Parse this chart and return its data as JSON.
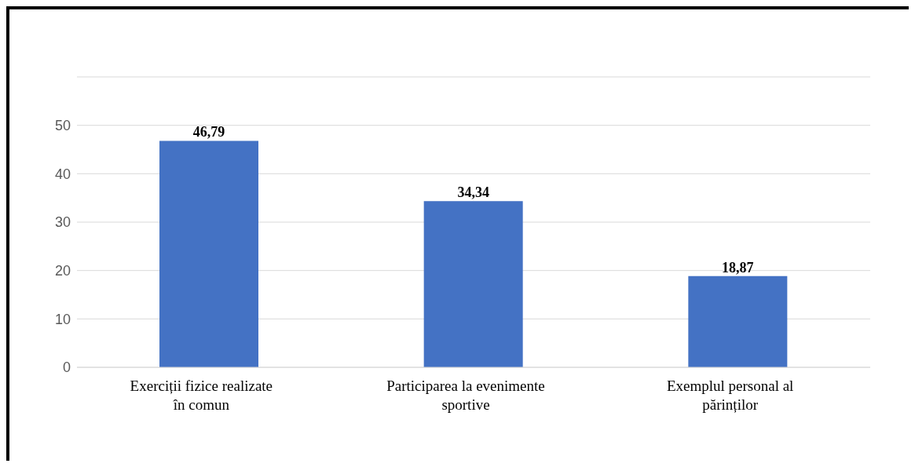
{
  "chart_data": {
    "type": "bar",
    "categories": [
      "Exerciții fizice realizate în comun",
      "Participarea la evenimente sportive",
      "Exemplul personal al părinților"
    ],
    "values": [
      46.79,
      34.34,
      18.87
    ],
    "value_labels": [
      "46,79",
      "34,34",
      "18,87"
    ],
    "color": "#4472c4",
    "ylim": [
      0,
      60
    ],
    "yticks": [
      0,
      10,
      20,
      30,
      40,
      50,
      {
        "value": 60,
        "label": null
      }
    ],
    "grid": "y"
  }
}
